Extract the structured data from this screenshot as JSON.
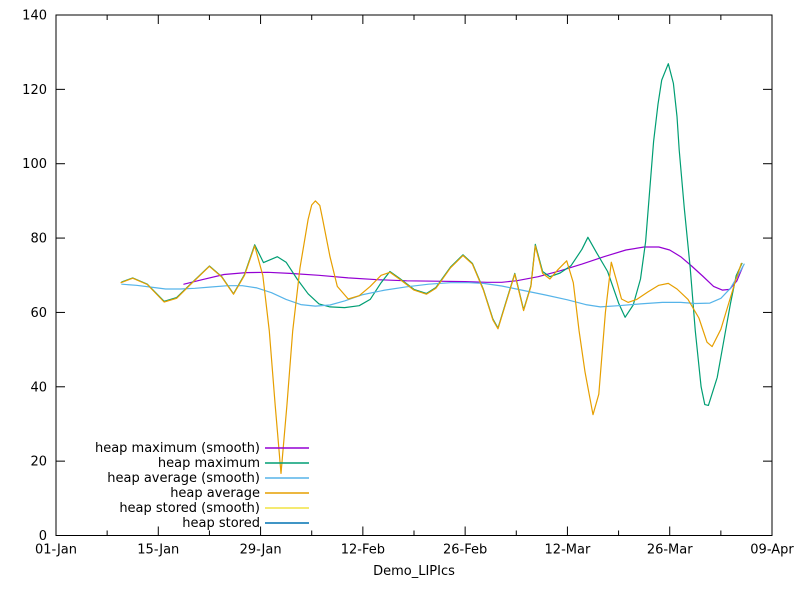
{
  "chart_data": {
    "type": "line",
    "title": "",
    "xlabel": "Demo_LIPIcs",
    "ylabel": "",
    "grid": false,
    "legend_position": "inside-bottom-left",
    "colors": {
      "axis": "#000000",
      "background": "#ffffff"
    },
    "x_axis": {
      "unit": "days since 01-Jan",
      "range_days": [
        0,
        98
      ],
      "major_ticks": [
        {
          "day": 0,
          "label": "01-Jan"
        },
        {
          "day": 14,
          "label": "15-Jan"
        },
        {
          "day": 28,
          "label": "29-Jan"
        },
        {
          "day": 42,
          "label": "12-Feb"
        },
        {
          "day": 56,
          "label": "26-Feb"
        },
        {
          "day": 70,
          "label": "12-Mar"
        },
        {
          "day": 84,
          "label": "26-Mar"
        },
        {
          "day": 98,
          "label": "09-Apr"
        }
      ],
      "minor_tick_days": [
        7,
        21,
        35,
        49,
        63,
        77,
        91
      ]
    },
    "y_axis": {
      "range": [
        0,
        140
      ],
      "tick_step": 20,
      "major_ticks": [
        0,
        20,
        40,
        60,
        80,
        100,
        120,
        140
      ]
    },
    "series": [
      {
        "name": "heap maximum (smooth)",
        "color": "#9400d3",
        "points": [
          [
            17.5,
            67.6
          ],
          [
            20,
            68.8
          ],
          [
            23,
            70.2
          ],
          [
            26,
            70.7
          ],
          [
            29,
            70.8
          ],
          [
            32,
            70.5
          ],
          [
            36,
            70.0
          ],
          [
            40,
            69.3
          ],
          [
            44,
            68.8
          ],
          [
            48,
            68.5
          ],
          [
            52,
            68.4
          ],
          [
            56,
            68.3
          ],
          [
            59,
            68.1
          ],
          [
            61,
            68.1
          ],
          [
            63,
            68.5
          ],
          [
            66,
            69.6
          ],
          [
            69,
            71.2
          ],
          [
            72,
            73.0
          ],
          [
            75,
            75.0
          ],
          [
            78,
            76.8
          ],
          [
            80.5,
            77.6
          ],
          [
            82.5,
            77.6
          ],
          [
            84,
            76.8
          ],
          [
            85.5,
            75.0
          ],
          [
            87,
            72.5
          ],
          [
            88.5,
            69.8
          ],
          [
            90,
            67.0
          ],
          [
            91.2,
            66.0
          ],
          [
            92.2,
            66.2
          ],
          [
            93.2,
            68.5
          ],
          [
            94,
            72.3
          ]
        ]
      },
      {
        "name": "heap maximum",
        "color": "#009e73",
        "points": [
          [
            9,
            68.2
          ],
          [
            10.5,
            69.3
          ],
          [
            12.5,
            67.6
          ],
          [
            14.8,
            63.0
          ],
          [
            16.5,
            64.0
          ],
          [
            18.5,
            67.8
          ],
          [
            21,
            72.5
          ],
          [
            22.7,
            69.6
          ],
          [
            24.3,
            65.0
          ],
          [
            25.8,
            70.2
          ],
          [
            27.2,
            78.2
          ],
          [
            28.4,
            73.4
          ],
          [
            30.3,
            75.0
          ],
          [
            31.5,
            73.5
          ],
          [
            33,
            69.0
          ],
          [
            34.5,
            65.0
          ],
          [
            36,
            62.3
          ],
          [
            37.5,
            61.5
          ],
          [
            39.5,
            61.3
          ],
          [
            41.5,
            61.8
          ],
          [
            43,
            63.5
          ],
          [
            44.5,
            68.0
          ],
          [
            45.7,
            71.0
          ],
          [
            47,
            69.2
          ],
          [
            49,
            66.2
          ],
          [
            50.7,
            65.1
          ],
          [
            52,
            66.7
          ],
          [
            54,
            72.2
          ],
          [
            55.7,
            75.5
          ],
          [
            57,
            73.2
          ],
          [
            58.5,
            66.2
          ],
          [
            59.8,
            58.2
          ],
          [
            60.5,
            55.8
          ],
          [
            61.5,
            62.2
          ],
          [
            62.8,
            70.5
          ],
          [
            64,
            60.7
          ],
          [
            65,
            67.2
          ],
          [
            65.6,
            78.3
          ],
          [
            66.6,
            71.0
          ],
          [
            67.6,
            69.6
          ],
          [
            69,
            70.6
          ],
          [
            70.5,
            72.6
          ],
          [
            72,
            77.0
          ],
          [
            72.8,
            80.2
          ],
          [
            74,
            76.0
          ],
          [
            75.5,
            71.0
          ],
          [
            77,
            62.5
          ],
          [
            77.9,
            58.7
          ],
          [
            79,
            62.0
          ],
          [
            80,
            69.0
          ],
          [
            80.7,
            79.0
          ],
          [
            81.8,
            106.0
          ],
          [
            82.4,
            116.0
          ],
          [
            82.9,
            122.5
          ],
          [
            83.8,
            126.9
          ],
          [
            84.5,
            121.6
          ],
          [
            85,
            112.7
          ],
          [
            85.3,
            103.7
          ],
          [
            86,
            88.0
          ],
          [
            86.8,
            72.0
          ],
          [
            87.5,
            55.0
          ],
          [
            88.3,
            40.0
          ],
          [
            88.8,
            35.2
          ],
          [
            89.3,
            35.0
          ],
          [
            90.5,
            42.5
          ],
          [
            91.4,
            52.4
          ],
          [
            92.3,
            62.3
          ],
          [
            93.1,
            69.9
          ],
          [
            93.9,
            73.2
          ]
        ]
      },
      {
        "name": "heap average (smooth)",
        "color": "#56b4e9",
        "points": [
          [
            9,
            67.6
          ],
          [
            11,
            67.3
          ],
          [
            13,
            66.8
          ],
          [
            15,
            66.3
          ],
          [
            17,
            66.3
          ],
          [
            19,
            66.5
          ],
          [
            21,
            66.8
          ],
          [
            23.5,
            67.2
          ],
          [
            25.5,
            67.2
          ],
          [
            27.5,
            66.6
          ],
          [
            29.5,
            65.3
          ],
          [
            31.5,
            63.5
          ],
          [
            33.5,
            62.1
          ],
          [
            35.5,
            61.7
          ],
          [
            37.5,
            62.0
          ],
          [
            39.5,
            63.1
          ],
          [
            42,
            64.8
          ],
          [
            45,
            66.0
          ],
          [
            48,
            66.9
          ],
          [
            51,
            67.6
          ],
          [
            54,
            68.0
          ],
          [
            56.5,
            68.0
          ],
          [
            58.5,
            67.8
          ],
          [
            61,
            67.1
          ],
          [
            64,
            65.9
          ],
          [
            67,
            64.7
          ],
          [
            70,
            63.4
          ],
          [
            72.5,
            62.1
          ],
          [
            74.5,
            61.5
          ],
          [
            77,
            61.8
          ],
          [
            80,
            62.3
          ],
          [
            83,
            62.7
          ],
          [
            85.5,
            62.7
          ],
          [
            87.5,
            62.4
          ],
          [
            89.5,
            62.5
          ],
          [
            91,
            63.8
          ],
          [
            92.3,
            66.5
          ],
          [
            93.3,
            69.8
          ],
          [
            94.2,
            73.0
          ]
        ]
      },
      {
        "name": "heap average",
        "color": "#e69f00",
        "points": [
          [
            8.9,
            68.0
          ],
          [
            10.5,
            69.2
          ],
          [
            12.5,
            67.5
          ],
          [
            14.8,
            62.8
          ],
          [
            16.5,
            63.8
          ],
          [
            18.5,
            67.7
          ],
          [
            21,
            72.4
          ],
          [
            22.7,
            69.5
          ],
          [
            24.3,
            64.9
          ],
          [
            25.8,
            70.0
          ],
          [
            27.2,
            77.9
          ],
          [
            28.3,
            70.0
          ],
          [
            29.2,
            55.0
          ],
          [
            30,
            35.0
          ],
          [
            30.8,
            16.7
          ],
          [
            31.6,
            35.0
          ],
          [
            32.4,
            55.0
          ],
          [
            33.4,
            72.0
          ],
          [
            34.5,
            85.0
          ],
          [
            35,
            88.9
          ],
          [
            35.5,
            90.0
          ],
          [
            36.1,
            88.8
          ],
          [
            36.5,
            85.0
          ],
          [
            37.5,
            75.0
          ],
          [
            38.5,
            67.0
          ],
          [
            40,
            63.6
          ],
          [
            41.5,
            64.5
          ],
          [
            43,
            67.0
          ],
          [
            44.5,
            70.0
          ],
          [
            45.7,
            70.8
          ],
          [
            47,
            69.0
          ],
          [
            49,
            66.0
          ],
          [
            50.7,
            64.9
          ],
          [
            52,
            66.5
          ],
          [
            54,
            72.0
          ],
          [
            55.7,
            75.3
          ],
          [
            57,
            73.0
          ],
          [
            58.5,
            66.0
          ],
          [
            59.8,
            58.0
          ],
          [
            60.5,
            55.6
          ],
          [
            61.5,
            62.0
          ],
          [
            62.8,
            70.3
          ],
          [
            64,
            60.5
          ],
          [
            65,
            67.0
          ],
          [
            65.6,
            77.9
          ],
          [
            66.6,
            70.5
          ],
          [
            67.6,
            69.0
          ],
          [
            68.7,
            71.5
          ],
          [
            69.9,
            73.9
          ],
          [
            70.8,
            68.0
          ],
          [
            71.6,
            55.0
          ],
          [
            72.4,
            44.0
          ],
          [
            73.5,
            32.5
          ],
          [
            74.3,
            38.0
          ],
          [
            75.2,
            60.0
          ],
          [
            76,
            73.5
          ],
          [
            76.8,
            68.0
          ],
          [
            77.4,
            63.6
          ],
          [
            78.3,
            62.7
          ],
          [
            79.5,
            63.5
          ],
          [
            81,
            65.5
          ],
          [
            82.5,
            67.3
          ],
          [
            83.8,
            67.8
          ],
          [
            85,
            66.3
          ],
          [
            86.5,
            63.5
          ],
          [
            88,
            58.5
          ],
          [
            89.1,
            52.0
          ],
          [
            89.8,
            50.8
          ],
          [
            91,
            55.5
          ],
          [
            92,
            62.0
          ],
          [
            93,
            68.5
          ],
          [
            93.8,
            73.2
          ]
        ]
      },
      {
        "name": "heap stored (smooth)",
        "color": "#f0e442",
        "points": []
      },
      {
        "name": "heap stored",
        "color": "#0072b2",
        "points": []
      }
    ]
  }
}
